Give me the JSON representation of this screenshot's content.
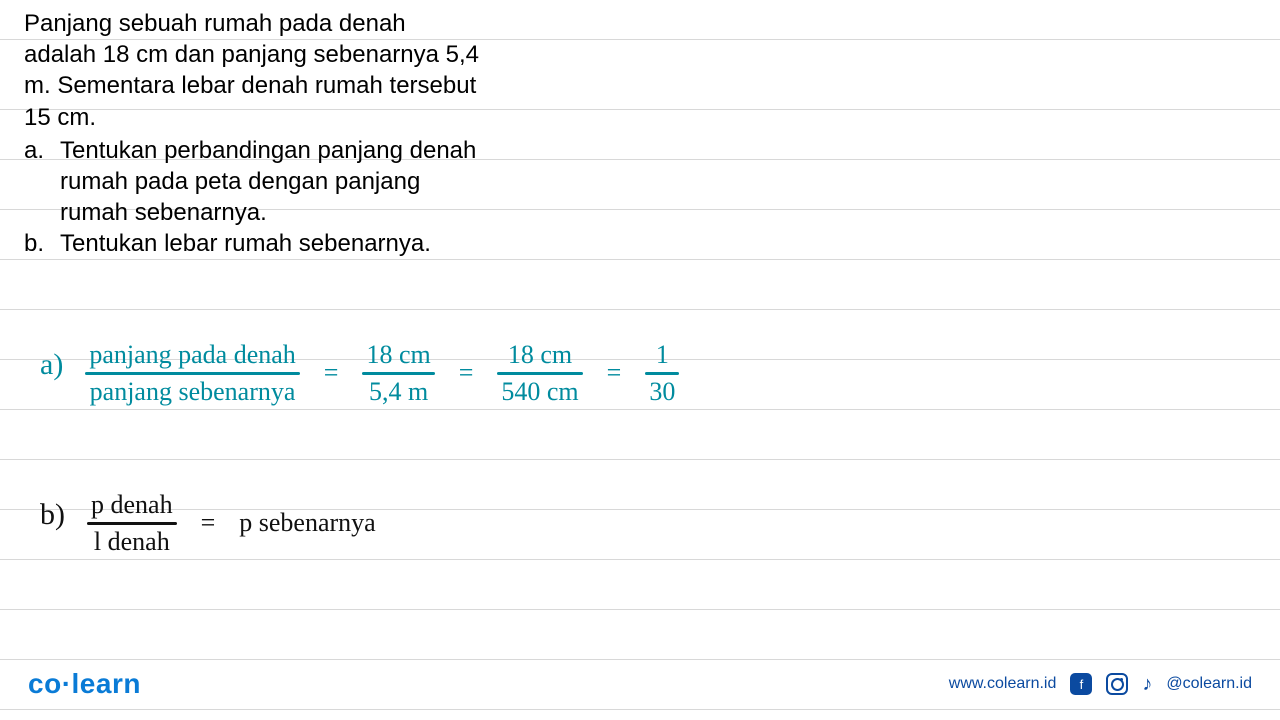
{
  "colors": {
    "background": "#ffffff",
    "line": "#d8d8d8",
    "print_text": "#000000",
    "hw_teal": "#008b9e",
    "hw_black": "#111111",
    "brand_blue": "#0a7bd6",
    "footer_blue": "#0b4aa0"
  },
  "typography": {
    "print_fontsize": 24,
    "handwriting_fontsize": 26,
    "logo_fontsize": 28,
    "footer_fontsize": 16
  },
  "question": {
    "intro": "Panjang sebuah rumah pada denah adalah 18 cm dan panjang sebenarnya 5,4 m. Sementara lebar denah rumah tersebut 15 cm.",
    "items": [
      {
        "marker": "a.",
        "text": "Tentukan perbandingan panjang denah rumah pada peta dengan panjang rumah sebenarnya."
      },
      {
        "marker": "b.",
        "text": "Tentukan lebar rumah sebenarnya."
      }
    ]
  },
  "solution_a": {
    "marker": "a)",
    "frac1": {
      "num": "panjang pada denah",
      "den": "panjang sebenarnya"
    },
    "eq1": "=",
    "frac2": {
      "num": "18 cm",
      "den": "5,4 m"
    },
    "eq2": "=",
    "frac3": {
      "num": "18 cm",
      "den": "540 cm"
    },
    "eq3": "=",
    "frac4": {
      "num": "1",
      "den": "30"
    }
  },
  "solution_b": {
    "marker": "b)",
    "frac": {
      "num": "p denah",
      "den": "l denah"
    },
    "eq": "=",
    "rhs": "p sebenarnya"
  },
  "footer": {
    "logo_co": "co",
    "logo_dot": "·",
    "logo_learn": "learn",
    "url": "www.colearn.id",
    "handle": "@colearn.id",
    "fb_glyph": "f",
    "tiktok_glyph": "♪"
  }
}
